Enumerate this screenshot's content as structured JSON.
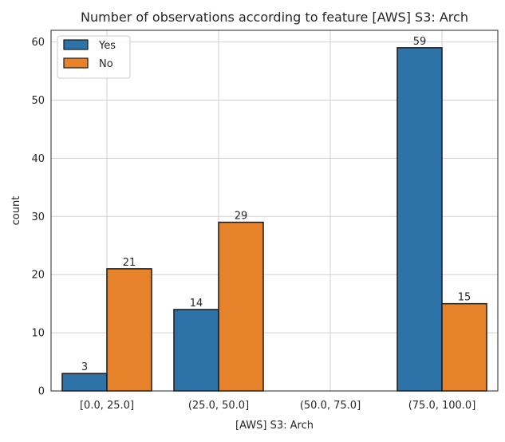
{
  "chart_data": {
    "type": "bar",
    "title": "Number of observations according to feature [AWS] S3: Arch",
    "xlabel": "[AWS] S3: Arch",
    "ylabel": "count",
    "categories": [
      "[0.0, 25.0]",
      "(25.0, 50.0]",
      "(50.0, 75.0]",
      "(75.0, 100.0]"
    ],
    "series": [
      {
        "name": "Yes",
        "values": [
          3,
          14,
          null,
          59
        ],
        "color": "#2e73a8"
      },
      {
        "name": "No",
        "values": [
          21,
          29,
          null,
          15
        ],
        "color": "#e6822a"
      }
    ],
    "ylim": [
      0,
      62
    ],
    "yticks": [
      0,
      10,
      20,
      30,
      40,
      50,
      60
    ],
    "grid": true,
    "legend": "top-left"
  }
}
